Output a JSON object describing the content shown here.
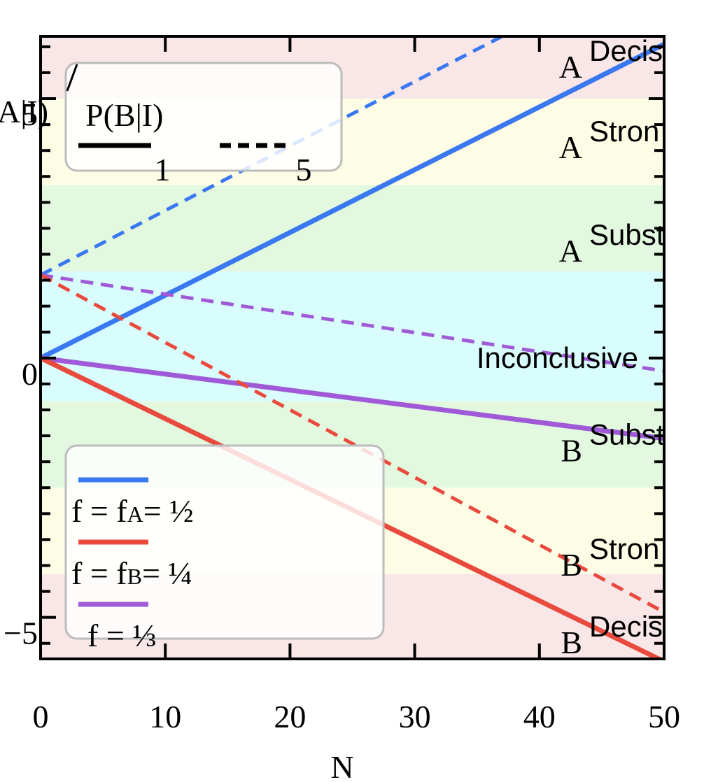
{
  "chart_data": {
    "type": "line",
    "xlabel": "N",
    "xlim": [
      0,
      50
    ],
    "ylim": [
      -5.8,
      6.2
    ],
    "xticks": [
      0,
      10,
      20,
      30,
      40,
      50
    ],
    "xtick_labels": [
      "0",
      "10",
      "20",
      "30",
      "40",
      "50"
    ],
    "yticks": [
      -5,
      0,
      5
    ],
    "ytick_labels": [
      "−5",
      "0",
      "5"
    ],
    "ylabel_partial": "A|I)",
    "bands": [
      {
        "from": 5,
        "to": 6.2,
        "color": "#f9e6e6"
      },
      {
        "from": 3.333,
        "to": 5,
        "color": "#fdfde6"
      },
      {
        "from": 1.667,
        "to": 3.333,
        "color": "#e2f9e0"
      },
      {
        "from": -0.833,
        "to": 1.667,
        "color": "#d9fcfc"
      },
      {
        "from": -2.5,
        "to": -0.833,
        "color": "#e2f9e0"
      },
      {
        "from": -4.167,
        "to": -2.5,
        "color": "#fdfde6"
      },
      {
        "from": -5.8,
        "to": -4.167,
        "color": "#f9e6e6"
      }
    ],
    "band_labels": [
      {
        "subscript": "A",
        "text": "Decisi",
        "y": 5.65
      },
      {
        "subscript": "A",
        "text": "Stron",
        "y": 4.1
      },
      {
        "subscript": "A",
        "text": "Substar",
        "y": 2.1
      },
      {
        "subscript": "",
        "text": "Inconclusive",
        "y": 0.0
      },
      {
        "subscript": "B",
        "text": "Substar",
        "y": -1.75
      },
      {
        "subscript": "B",
        "text": "Stron",
        "y": -3.95
      },
      {
        "subscript": "B",
        "text": "Decisi",
        "y": -5.45
      }
    ],
    "series": [
      {
        "color": "#3a78f0",
        "dash": false,
        "x": [
          0,
          50
        ],
        "y": [
          0,
          6.05
        ]
      },
      {
        "color": "#3a78f0",
        "dash": true,
        "x": [
          0,
          37
        ],
        "y": [
          1.6,
          6.2
        ]
      },
      {
        "color": "#a05ad8",
        "dash": false,
        "x": [
          0,
          50
        ],
        "y": [
          0,
          -1.55
        ]
      },
      {
        "color": "#a05ad8",
        "dash": true,
        "x": [
          0,
          50
        ],
        "y": [
          1.6,
          -0.25
        ]
      },
      {
        "color": "#e84a3d",
        "dash": false,
        "x": [
          0,
          50
        ],
        "y": [
          0,
          -5.85
        ]
      },
      {
        "color": "#e84a3d",
        "dash": true,
        "x": [
          0,
          50
        ],
        "y": [
          1.6,
          -4.9
        ]
      }
    ],
    "legend_ratio": {
      "title": "P(B|I)",
      "entries": [
        {
          "label": "1",
          "dash": false
        },
        {
          "label": "5",
          "dash": true
        }
      ]
    },
    "legend_f": {
      "entries": [
        {
          "color": "#3a78f0",
          "text": "f = f",
          "sub": "A",
          "tail": "= ½"
        },
        {
          "color": "#e84a3d",
          "text": "f = f",
          "sub": "B",
          "tail": "= ¼"
        },
        {
          "color": "#a05ad8",
          "text": "  f = ⅓",
          "sub": "",
          "tail": ""
        }
      ]
    }
  }
}
